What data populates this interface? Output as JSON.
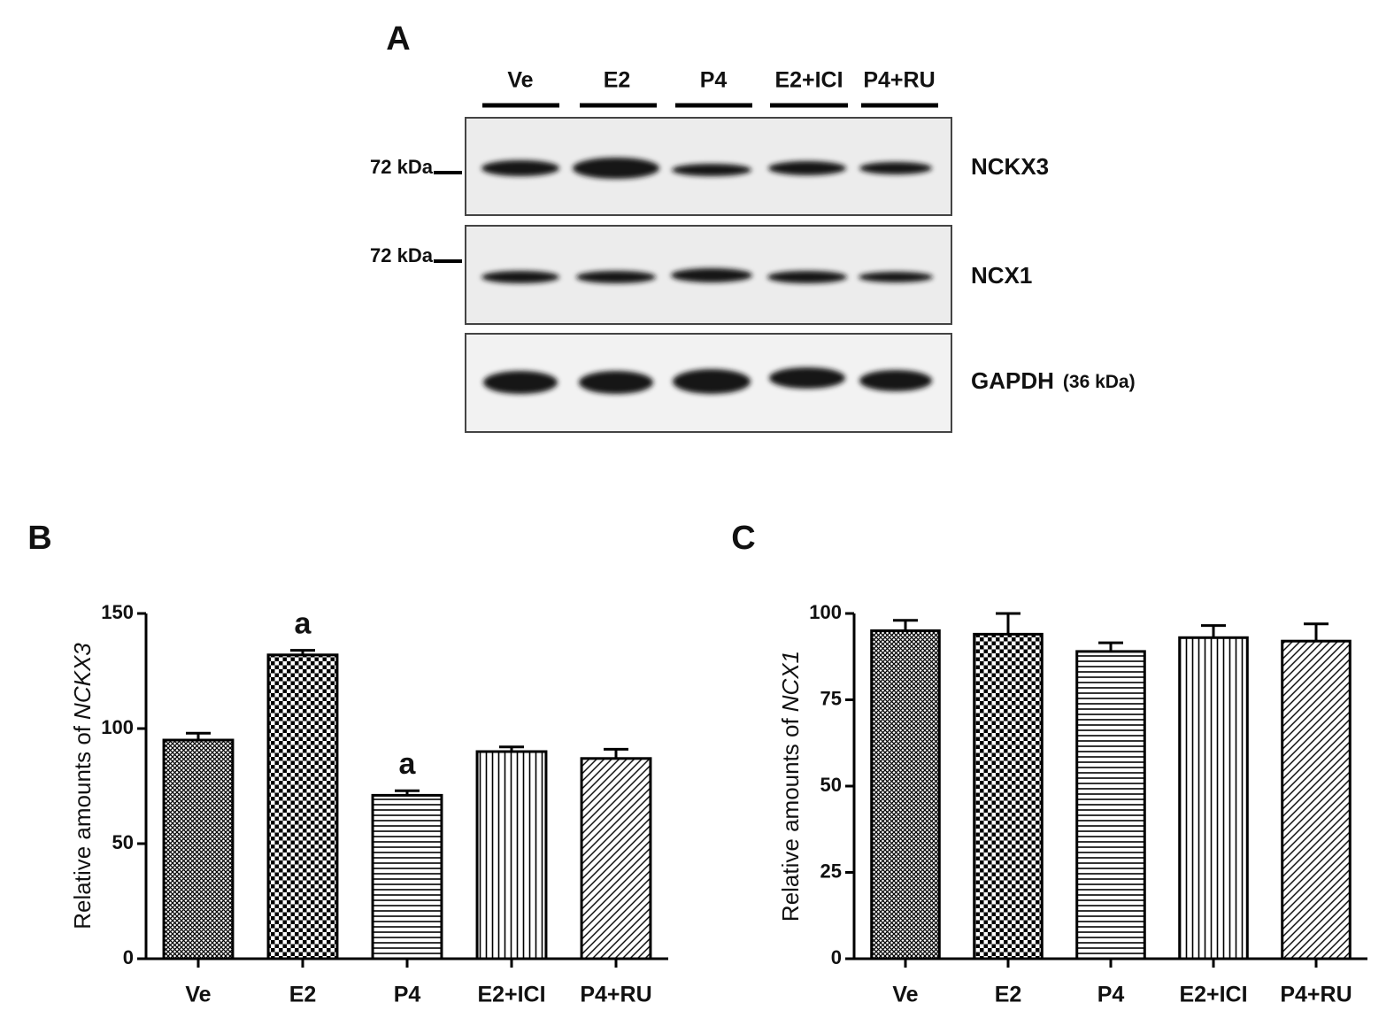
{
  "blot": {
    "panel": "A",
    "lanes": [
      "Ve",
      "E2",
      "P4",
      "E2+ICI",
      "P4+RU"
    ],
    "markers": [
      "72 kDa",
      "72 kDa"
    ],
    "rows": [
      {
        "label": "NCKX3"
      },
      {
        "label": "NCX1"
      },
      {
        "label": "GAPDH",
        "note": "(36 kDa)"
      }
    ]
  },
  "chart_data": [
    {
      "type": "bar",
      "title": "B",
      "ylabel": {
        "text": "Relative amounts of",
        "gene": "NCKX3"
      },
      "categories": [
        "Ve",
        "E2",
        "P4",
        "E2+ICI",
        "P4+RU"
      ],
      "values": [
        95,
        132,
        71,
        90,
        87
      ],
      "errors": [
        3,
        2,
        2,
        2,
        4
      ],
      "annotations": [
        {
          "x": "E2",
          "text": "a"
        },
        {
          "x": "P4",
          "text": "a"
        }
      ],
      "patterns": [
        "crosshatch",
        "checker",
        "horizontal",
        "vertical",
        "diagonal"
      ],
      "color": "#000000",
      "ylim": [
        0,
        150
      ],
      "yticks": [
        0,
        50,
        100,
        150
      ],
      "grid": false
    },
    {
      "type": "bar",
      "title": "C",
      "ylabel": {
        "text": "Relative amounts of",
        "gene": "NCX1"
      },
      "categories": [
        "Ve",
        "E2",
        "P4",
        "E2+ICI",
        "P4+RU"
      ],
      "values": [
        95,
        94,
        89,
        93,
        92
      ],
      "errors": [
        3,
        6,
        2.5,
        3.5,
        5
      ],
      "patterns": [
        "crosshatch",
        "checker",
        "horizontal",
        "vertical",
        "diagonal"
      ],
      "color": "#000000",
      "ylim": [
        0,
        100
      ],
      "yticks": [
        0,
        25,
        50,
        75,
        100
      ],
      "grid": false
    }
  ]
}
